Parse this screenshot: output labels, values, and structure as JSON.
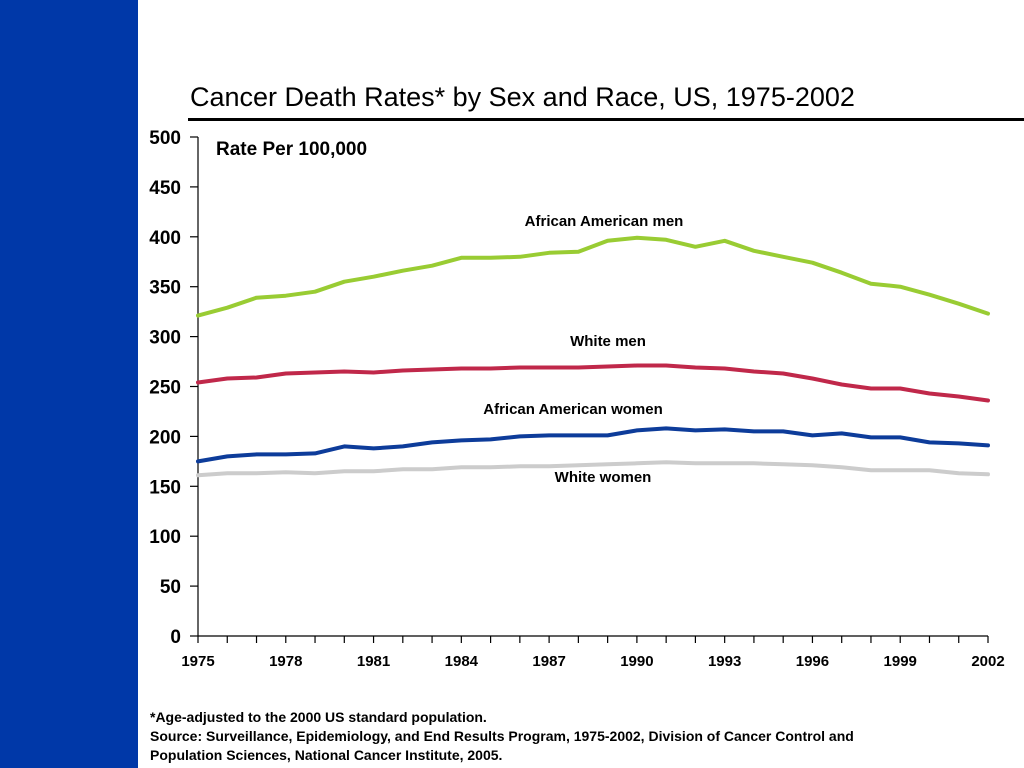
{
  "slide": {
    "title": "Cancer Death Rates* by Sex and Race, US, 1975-2002",
    "sidebar_color": "#0038A8",
    "footnote_lines": [
      "*Age-adjusted to the 2000 US standard population.",
      "Source: Surveillance, Epidemiology, and End Results Program, 1975-2002, Division of Cancer Control and",
      "Population Sciences, National Cancer Institute, 2005."
    ]
  },
  "chart_data": {
    "type": "line",
    "title": "Cancer Death Rates* by Sex and Race, US, 1975-2002",
    "ylabel": "Rate Per 100,000",
    "xlabel": "",
    "ylim": [
      0,
      500
    ],
    "yticks": [
      0,
      50,
      100,
      150,
      200,
      250,
      300,
      350,
      400,
      450,
      500
    ],
    "xlim": [
      1975,
      2002
    ],
    "xtick_labels": [
      1975,
      1978,
      1981,
      1984,
      1987,
      1990,
      1993,
      1996,
      1999,
      2002
    ],
    "grid": false,
    "x": [
      1975,
      1976,
      1977,
      1978,
      1979,
      1980,
      1981,
      1982,
      1983,
      1984,
      1985,
      1986,
      1987,
      1988,
      1989,
      1990,
      1991,
      1992,
      1993,
      1994,
      1995,
      1996,
      1997,
      1998,
      1999,
      2000,
      2001,
      2002
    ],
    "series": [
      {
        "name": "African American men",
        "color": "#99CC33",
        "values": [
          321,
          329,
          339,
          341,
          345,
          355,
          360,
          366,
          371,
          379,
          379,
          380,
          384,
          385,
          396,
          399,
          397,
          390,
          396,
          386,
          380,
          374,
          364,
          353,
          350,
          342,
          333,
          323
        ]
      },
      {
        "name": "White men",
        "color": "#C0284A",
        "values": [
          254,
          258,
          259,
          263,
          264,
          265,
          264,
          266,
          267,
          268,
          268,
          269,
          269,
          269,
          270,
          271,
          271,
          269,
          268,
          265,
          263,
          258,
          252,
          248,
          248,
          243,
          240,
          236
        ]
      },
      {
        "name": "African American women",
        "color": "#0D3C9A",
        "values": [
          175,
          180,
          182,
          182,
          183,
          190,
          188,
          190,
          194,
          196,
          197,
          200,
          201,
          201,
          201,
          206,
          208,
          206,
          207,
          205,
          205,
          201,
          203,
          199,
          199,
          194,
          193,
          191
        ]
      },
      {
        "name": "White women",
        "color": "#CCCCCC",
        "values": [
          161,
          163,
          163,
          164,
          163,
          165,
          165,
          167,
          167,
          169,
          169,
          170,
          170,
          171,
          172,
          173,
          174,
          173,
          173,
          173,
          172,
          171,
          169,
          166,
          166,
          166,
          163,
          162
        ]
      }
    ]
  }
}
